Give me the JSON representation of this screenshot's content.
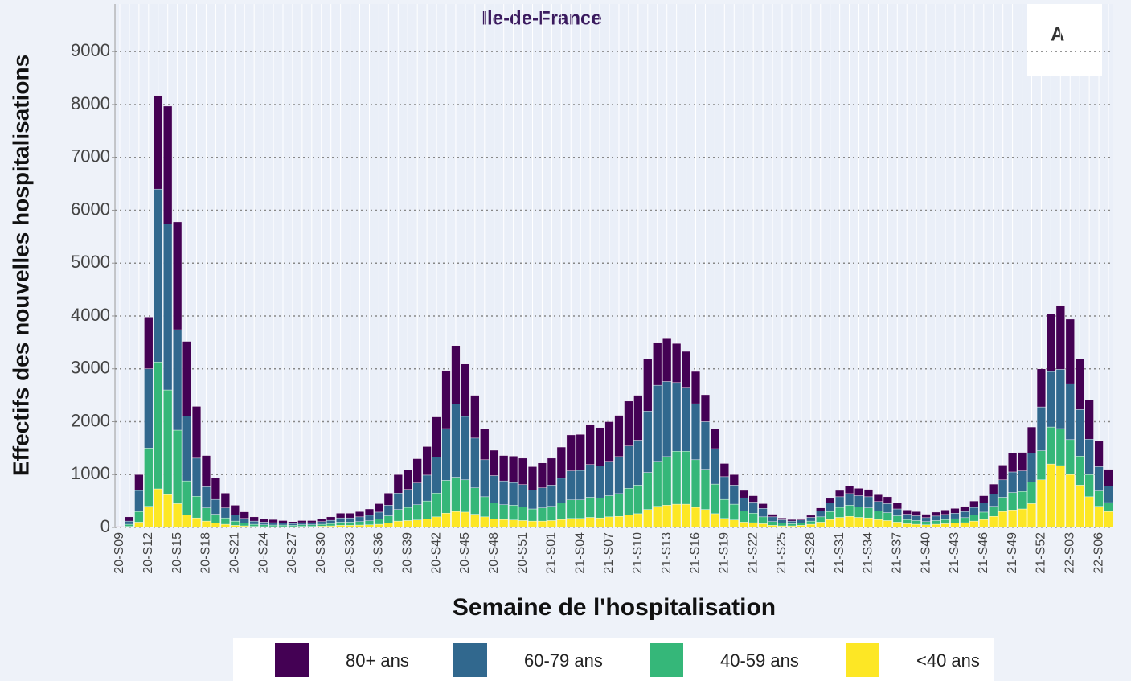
{
  "chart_data": {
    "type": "stacked_bar",
    "title": "Ile-de-France",
    "panel_label": "A",
    "x_label": "Semaine de l'hospitalisation",
    "y_label": "Effectifs des nouvelles hospitalisations",
    "categories": [
      "20-S09",
      null,
      null,
      "20-S12",
      null,
      null,
      "20-S15",
      null,
      null,
      "20-S18",
      null,
      null,
      "20-S21",
      null,
      null,
      "20-S24",
      null,
      null,
      "20-S27",
      null,
      null,
      "20-S30",
      null,
      null,
      "20-S33",
      null,
      null,
      "20-S36",
      null,
      null,
      "20-S39",
      null,
      null,
      "20-S42",
      null,
      null,
      "20-S45",
      null,
      null,
      "20-S48",
      null,
      null,
      "20-S51",
      null,
      null,
      "21-S01",
      null,
      null,
      "21-S04",
      null,
      null,
      "21-S07",
      null,
      null,
      "21-S10",
      null,
      null,
      "21-S13",
      null,
      null,
      "21-S16",
      null,
      null,
      "21-S19",
      null,
      null,
      "21-S22",
      null,
      null,
      "21-S25",
      null,
      null,
      "21-S28",
      null,
      null,
      "21-S31",
      null,
      null,
      "21-S34",
      null,
      null,
      "21-S37",
      null,
      null,
      "21-S40",
      null,
      null,
      "21-S43",
      null,
      null,
      "21-S46",
      null,
      null,
      "21-S49",
      null,
      null,
      "21-S52",
      null,
      null,
      "22-S03",
      null,
      null,
      "22-S06",
      null
    ],
    "series": [
      {
        "name": "80+ ans",
        "color": "#440154",
        "values": [
          8,
          80,
          300,
          980,
          1770,
          2230,
          2040,
          1410,
          980,
          590,
          410,
          280,
          180,
          125,
          80,
          60,
          60,
          45,
          35,
          40,
          40,
          50,
          65,
          90,
          90,
          100,
          120,
          160,
          230,
          350,
          370,
          460,
          540,
          760,
          1100,
          1110,
          990,
          810,
          590,
          480,
          480,
          500,
          500,
          440,
          470,
          510,
          590,
          680,
          680,
          760,
          730,
          750,
          780,
          850,
          850,
          990,
          810,
          810,
          740,
          680,
          610,
          510,
          370,
          250,
          200,
          140,
          120,
          90,
          50,
          35,
          30,
          30,
          40,
          60,
          90,
          120,
          140,
          140,
          140,
          130,
          130,
          110,
          80,
          80,
          65,
          75,
          85,
          90,
          100,
          120,
          140,
          190,
          280,
          360,
          350,
          490,
          720,
          1090,
          1210,
          1220,
          960,
          740,
          480,
          320
        ]
      },
      {
        "name": "60-79 ans",
        "color": "#31688e",
        "values": [
          6,
          60,
          400,
          1500,
          3270,
          3140,
          1900,
          1230,
          720,
          400,
          280,
          190,
          120,
          85,
          60,
          50,
          45,
          40,
          35,
          40,
          40,
          50,
          60,
          80,
          80,
          90,
          105,
          135,
          200,
          310,
          340,
          410,
          490,
          680,
          980,
          1380,
          1200,
          940,
          700,
          520,
          450,
          430,
          420,
          360,
          380,
          400,
          470,
          550,
          560,
          620,
          600,
          650,
          700,
          800,
          850,
          1160,
          1440,
          1420,
          1300,
          1210,
          1060,
          900,
          670,
          430,
          360,
          250,
          210,
          160,
          90,
          65,
          50,
          55,
          70,
          110,
          160,
          200,
          220,
          210,
          210,
          180,
          170,
          130,
          100,
          90,
          75,
          85,
          95,
          105,
          115,
          140,
          170,
          230,
          330,
          390,
          390,
          550,
          830,
          1050,
          1120,
          1060,
          880,
          670,
          460,
          310
        ]
      },
      {
        "name": "40-59 ans",
        "color": "#35b779",
        "values": [
          4,
          40,
          200,
          1100,
          2400,
          1980,
          1390,
          640,
          410,
          250,
          170,
          120,
          80,
          55,
          40,
          35,
          30,
          30,
          25,
          30,
          30,
          35,
          45,
          60,
          60,
          65,
          75,
          95,
          140,
          220,
          250,
          290,
          340,
          450,
          620,
          650,
          610,
          500,
          380,
          300,
          280,
          280,
          260,
          230,
          250,
          270,
          310,
          350,
          350,
          380,
          380,
          400,
          430,
          500,
          540,
          700,
          850,
          920,
          1000,
          1000,
          900,
          760,
          560,
          360,
          300,
          210,
          180,
          130,
          70,
          50,
          40,
          45,
          60,
          100,
          150,
          190,
          210,
          200,
          190,
          160,
          150,
          120,
          80,
          70,
          60,
          70,
          80,
          85,
          95,
          120,
          140,
          190,
          270,
          330,
          330,
          410,
          550,
          700,
          700,
          660,
          550,
          420,
          290,
          170
        ]
      },
      {
        "name": "<40 ans",
        "color": "#fde725",
        "values": [
          2,
          20,
          100,
          400,
          730,
          620,
          450,
          240,
          180,
          120,
          80,
          60,
          40,
          30,
          20,
          15,
          15,
          15,
          15,
          20,
          20,
          25,
          30,
          40,
          40,
          45,
          50,
          60,
          80,
          120,
          130,
          140,
          160,
          200,
          270,
          300,
          290,
          250,
          200,
          160,
          150,
          140,
          130,
          120,
          120,
          130,
          150,
          170,
          170,
          190,
          180,
          200,
          210,
          240,
          260,
          340,
          400,
          420,
          440,
          440,
          380,
          340,
          260,
          170,
          140,
          100,
          90,
          70,
          40,
          30,
          30,
          40,
          60,
          100,
          150,
          190,
          210,
          190,
          180,
          150,
          130,
          100,
          70,
          60,
          50,
          60,
          70,
          80,
          90,
          120,
          150,
          210,
          300,
          330,
          350,
          450,
          900,
          1200,
          1170,
          1000,
          800,
          580,
          400,
          300
        ]
      }
    ],
    "ylim": [
      0,
      9900
    ],
    "yticks": [
      0,
      1000,
      2000,
      3000,
      4000,
      5000,
      6000,
      7000,
      8000,
      9000
    ],
    "grid": true,
    "legend": "bottom"
  }
}
